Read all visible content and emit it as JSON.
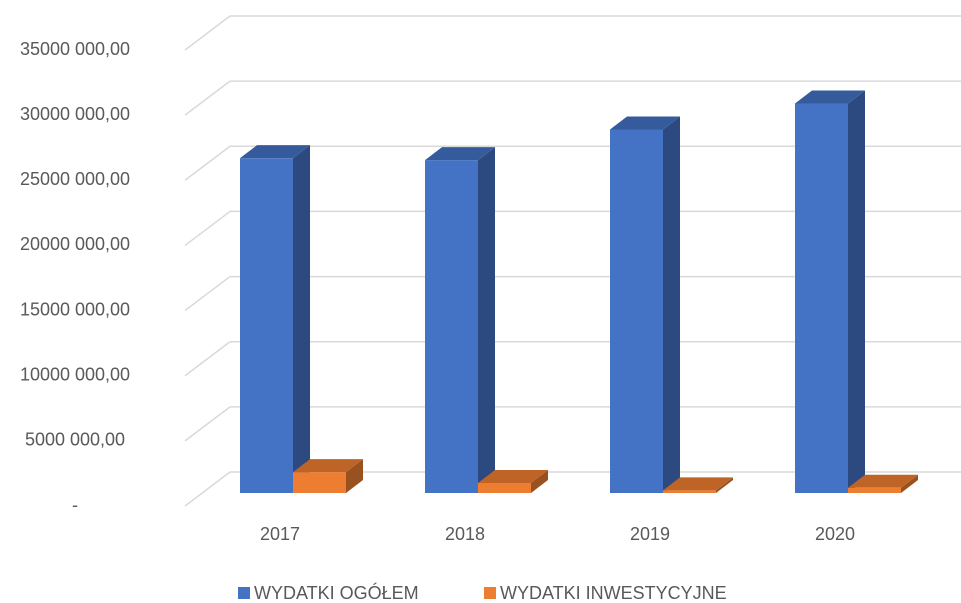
{
  "chart_data": {
    "type": "bar3d",
    "categories": [
      "2017",
      "2018",
      "2019",
      "2020"
    ],
    "series": [
      {
        "name": "WYDATKI OGÓŁEM",
        "color": "#4472c4",
        "values": [
          25700000,
          25550000,
          27900000,
          29900000
        ]
      },
      {
        "name": "WYDATKI INWESTYCYJNE",
        "color": "#ed7d31",
        "values": [
          1600000,
          770000,
          200000,
          400000
        ]
      }
    ],
    "ylim": [
      0,
      35000000
    ],
    "yticks": [
      {
        "value": 0,
        "label": "-"
      },
      {
        "value": 5000000,
        "label": "5000 000,00"
      },
      {
        "value": 10000000,
        "label": "10000 000,00"
      },
      {
        "value": 15000000,
        "label": "15000 000,00"
      },
      {
        "value": 20000000,
        "label": "20000 000,00"
      },
      {
        "value": 25000000,
        "label": "25000 000,00"
      },
      {
        "value": 30000000,
        "label": "30000 000,00"
      },
      {
        "value": 35000000,
        "label": "35000 000,00"
      }
    ],
    "grid": true,
    "legend": "bottom"
  }
}
